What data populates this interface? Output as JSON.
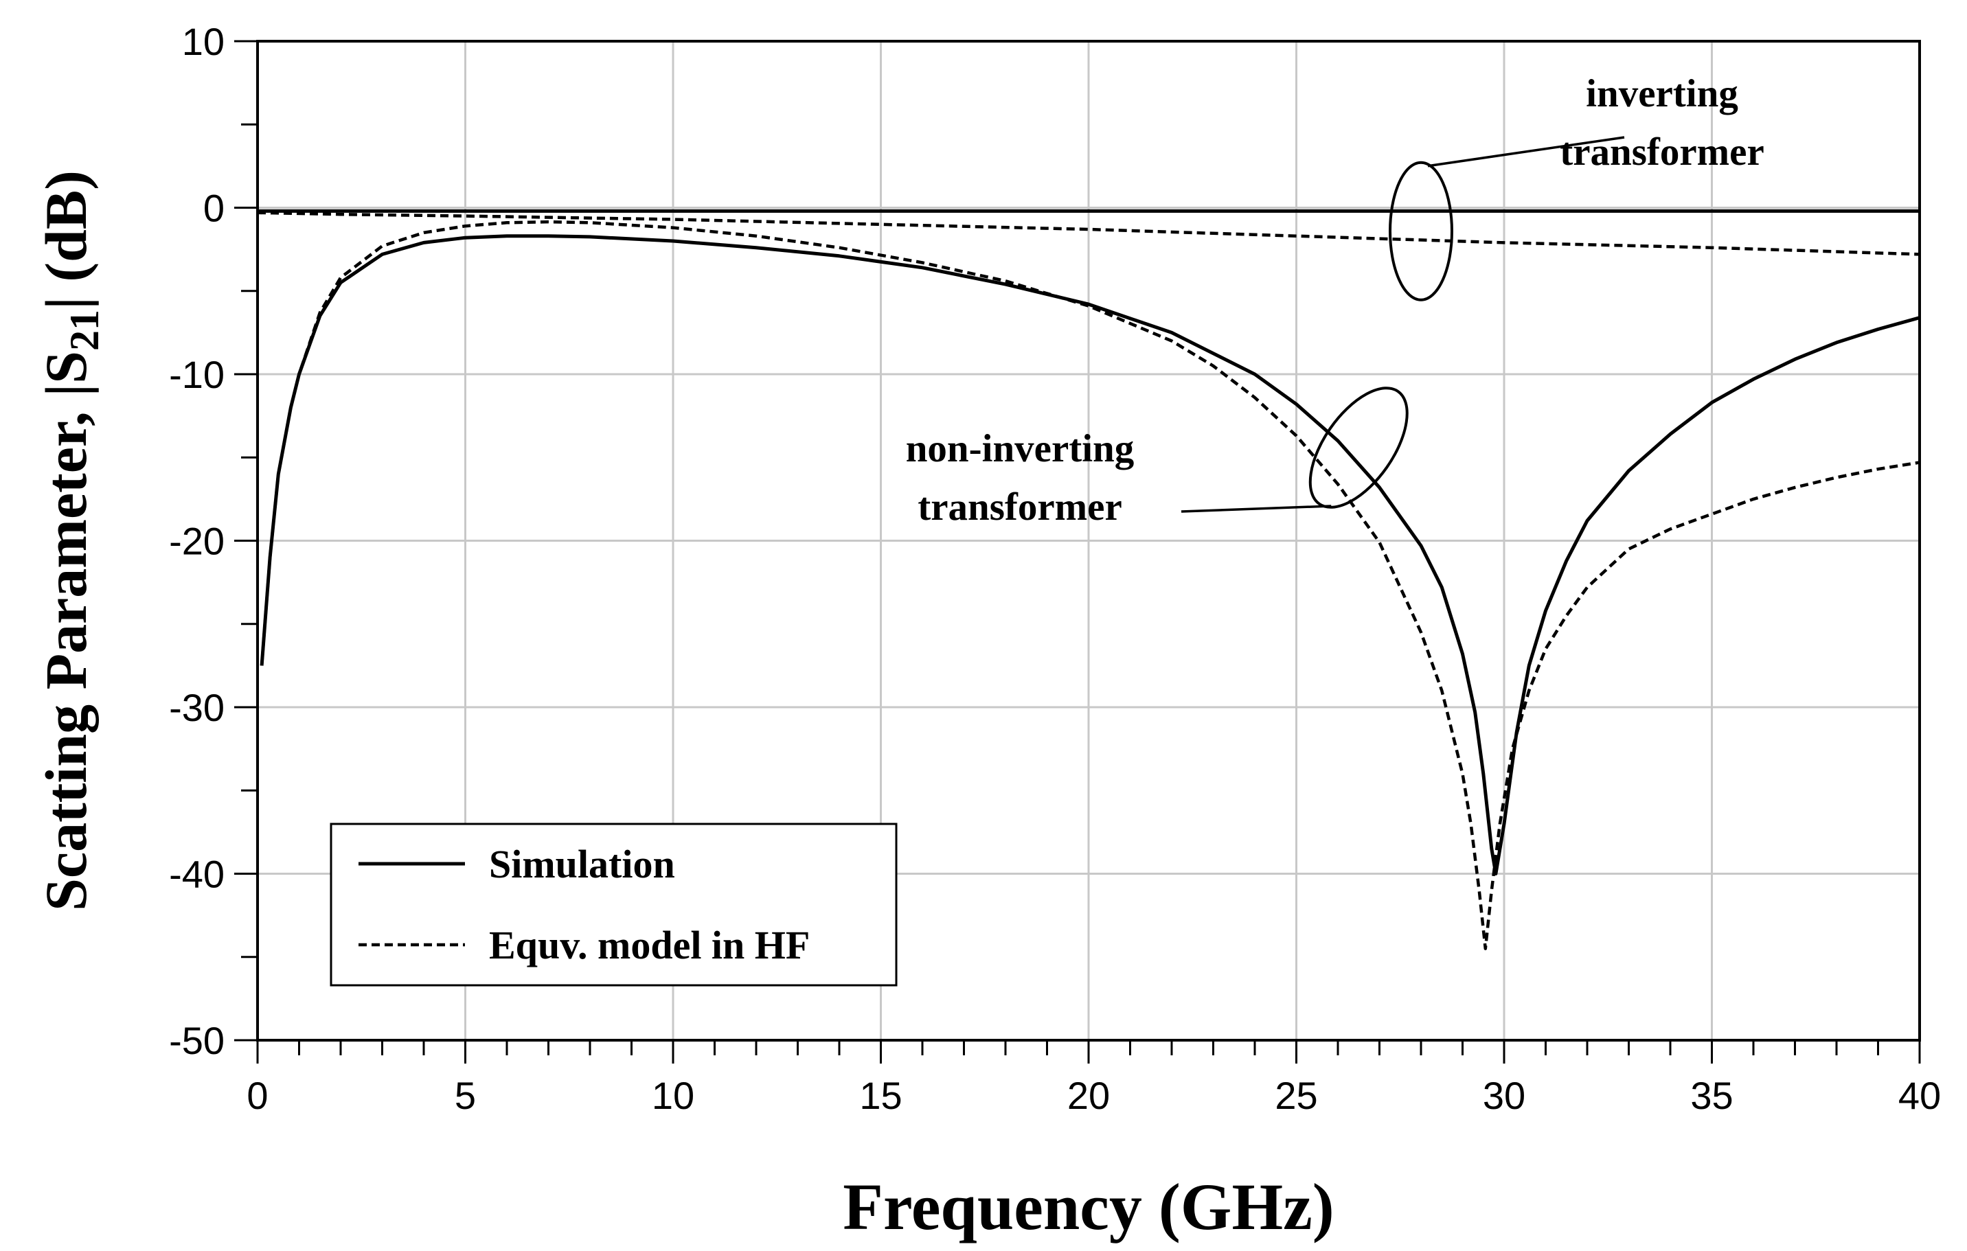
{
  "chart_data": {
    "type": "line",
    "xlabel": "Frequency (GHz)",
    "ylabel_parts": [
      "Scatting Parameter, |S",
      "21",
      "| (dB)"
    ],
    "xlim": [
      0,
      40
    ],
    "ylim": [
      -50,
      10
    ],
    "x_ticks": [
      0,
      5,
      10,
      15,
      20,
      25,
      30,
      35,
      40
    ],
    "x_tick_labels": [
      "0",
      "5",
      "10",
      "15",
      "20",
      "25",
      "30",
      "35",
      "40"
    ],
    "y_ticks": [
      10,
      0,
      -10,
      -20,
      -30,
      -40,
      -50
    ],
    "y_tick_labels": [
      "10",
      "0",
      "-10",
      "-20",
      "-30",
      "-40",
      "-50"
    ],
    "x_minor_step": 1,
    "y_minor_step": 5,
    "grid": true,
    "legend": {
      "position": "bottom-left",
      "entries": [
        {
          "label": "Simulation",
          "style": "solid"
        },
        {
          "label": "Equv. model in HF",
          "style": "dashed"
        }
      ]
    },
    "annotations": [
      {
        "lines": [
          "inverting",
          "transformer"
        ],
        "target_x": 28.0,
        "target_y": -1.0
      },
      {
        "lines": [
          "non-inverting",
          "transformer"
        ],
        "target_x": 26.5,
        "target_y": -14.0
      }
    ],
    "series": [
      {
        "name": "inverting transformer - Simulation",
        "style": "solid",
        "x": [
          0,
          5,
          10,
          15,
          20,
          25,
          30,
          35,
          40
        ],
        "y": [
          -0.2,
          -0.2,
          -0.2,
          -0.2,
          -0.2,
          -0.2,
          -0.2,
          -0.2,
          -0.2
        ]
      },
      {
        "name": "inverting transformer - Equv. model in HF",
        "style": "dashed",
        "x": [
          0,
          2,
          5,
          10,
          15,
          20,
          25,
          30,
          35,
          40
        ],
        "y": [
          -0.3,
          -0.4,
          -0.5,
          -0.7,
          -1.0,
          -1.3,
          -1.7,
          -2.1,
          -2.4,
          -2.8
        ]
      },
      {
        "name": "non-inverting transformer - Simulation",
        "style": "solid",
        "x": [
          0.1,
          0.3,
          0.5,
          0.8,
          1.0,
          1.5,
          2.0,
          3.0,
          4.0,
          5.0,
          6.0,
          7.0,
          8.0,
          10.0,
          12.0,
          14.0,
          16.0,
          18.0,
          20.0,
          22.0,
          24.0,
          25.0,
          26.0,
          27.0,
          28.0,
          28.5,
          29.0,
          29.3,
          29.5,
          29.7,
          29.8,
          30.0,
          30.3,
          30.6,
          31.0,
          31.5,
          32.0,
          33.0,
          34.0,
          35.0,
          36.0,
          37.0,
          38.0,
          39.0,
          40.0
        ],
        "y": [
          -27.5,
          -21.0,
          -16.0,
          -12.0,
          -10.0,
          -6.5,
          -4.5,
          -2.8,
          -2.1,
          -1.8,
          -1.7,
          -1.7,
          -1.75,
          -2.0,
          -2.4,
          -2.9,
          -3.6,
          -4.6,
          -5.8,
          -7.5,
          -10.0,
          -11.8,
          -14.0,
          -16.8,
          -20.3,
          -22.8,
          -26.8,
          -30.3,
          -34.0,
          -38.5,
          -40.0,
          -37.0,
          -31.5,
          -27.5,
          -24.2,
          -21.2,
          -18.8,
          -15.8,
          -13.6,
          -11.7,
          -10.3,
          -9.1,
          -8.1,
          -7.3,
          -6.6
        ]
      },
      {
        "name": "non-inverting transformer - Equv. model in HF",
        "style": "dashed",
        "x": [
          0.1,
          0.3,
          0.5,
          0.8,
          1.0,
          1.5,
          2.0,
          3.0,
          4.0,
          5.0,
          6.0,
          7.0,
          8.0,
          10.0,
          12.0,
          14.0,
          16.0,
          18.0,
          20.0,
          22.0,
          23.0,
          24.0,
          25.0,
          26.0,
          27.0,
          28.0,
          28.5,
          29.0,
          29.2,
          29.4,
          29.55,
          29.7,
          29.9,
          30.2,
          30.6,
          31.0,
          31.5,
          32.0,
          33.0,
          34.0,
          35.0,
          36.0,
          37.0,
          38.0,
          39.0,
          40.0
        ],
        "y": [
          -27.5,
          -21.0,
          -16.0,
          -12.0,
          -10.0,
          -6.3,
          -4.2,
          -2.3,
          -1.5,
          -1.1,
          -0.9,
          -0.85,
          -0.9,
          -1.2,
          -1.7,
          -2.4,
          -3.3,
          -4.4,
          -5.9,
          -8.0,
          -9.5,
          -11.4,
          -13.7,
          -16.6,
          -20.1,
          -25.5,
          -29.0,
          -34.0,
          -37.0,
          -41.0,
          -44.5,
          -41.0,
          -37.0,
          -32.5,
          -29.0,
          -26.5,
          -24.5,
          -22.8,
          -20.5,
          -19.3,
          -18.4,
          -17.5,
          -16.8,
          -16.2,
          -15.7,
          -15.3
        ]
      }
    ]
  }
}
